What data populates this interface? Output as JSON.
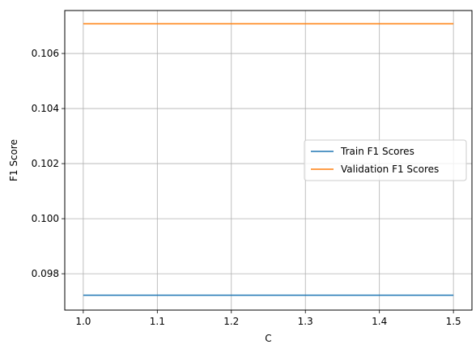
{
  "chart_data": {
    "type": "line",
    "title": "",
    "xlabel": "C",
    "ylabel": "F1 Score",
    "xlim": [
      0.975,
      1.525
    ],
    "ylim": [
      0.09668,
      0.10756
    ],
    "xticks": [
      1.0,
      1.1,
      1.2,
      1.3,
      1.4,
      1.5
    ],
    "xtick_labels": [
      "1.0",
      "1.1",
      "1.2",
      "1.3",
      "1.4",
      "1.5"
    ],
    "yticks": [
      0.098,
      0.1,
      0.102,
      0.104,
      0.106
    ],
    "ytick_labels": [
      "0.098",
      "0.100",
      "0.102",
      "0.104",
      "0.106"
    ],
    "grid": true,
    "legend_position": "center-right",
    "series": [
      {
        "name": "Train F1 Scores",
        "color": "#1f77b4",
        "x": [
          1.0,
          1.5
        ],
        "y": [
          0.09722,
          0.09722
        ]
      },
      {
        "name": "Validation F1 Scores",
        "color": "#ff7f0e",
        "x": [
          1.0,
          1.5
        ],
        "y": [
          0.10708,
          0.10708
        ]
      }
    ]
  }
}
